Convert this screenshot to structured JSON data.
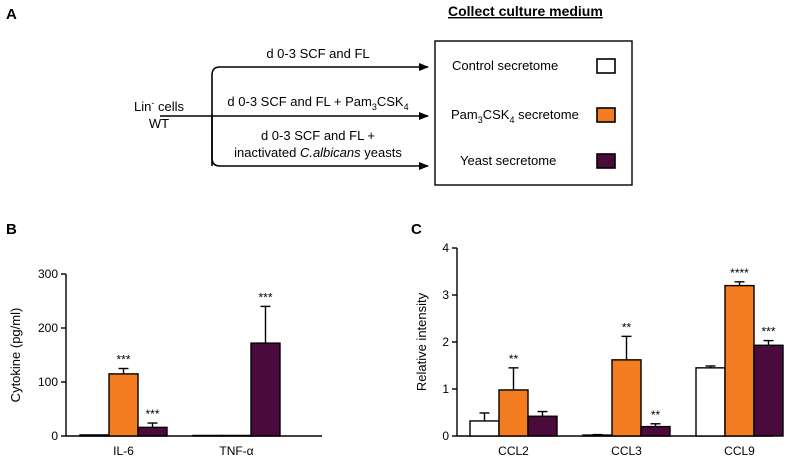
{
  "colors": {
    "control": "#ffffff",
    "pam": "#f47c20",
    "yeast": "#4a0a3c",
    "stroke": "#000000"
  },
  "panel_a": {
    "label": "A",
    "header": "Collect culture medium",
    "cells_line1": "Lin",
    "cells_sup": "-",
    "cells_line1b": " cells",
    "cells_line2": "WT",
    "arrow1": "d 0-3 SCF and FL",
    "arrow2_pre": "d 0-3 SCF and FL + Pam",
    "arrow2_sub1": "3",
    "arrow2_mid": "CSK",
    "arrow2_sub2": "4",
    "arrow3_line1": "d 0-3 SCF and FL +",
    "arrow3_line2_pre": "inactivated ",
    "arrow3_line2_ital": "C.albicans",
    "arrow3_line2_post": " yeasts",
    "legend_control": "Control secretome",
    "legend_pam_pre": "Pam",
    "legend_pam_sub1": "3",
    "legend_pam_mid": "CSK",
    "legend_pam_sub2": "4",
    "legend_pam_post": " secretome",
    "legend_yeast": "Yeast secretome"
  },
  "chart_data": [
    {
      "panel": "B",
      "type": "bar",
      "ylabel": "Cytokine (pg/ml)",
      "ylim": [
        0,
        300
      ],
      "yticks": [
        "0",
        "100",
        "200",
        "300"
      ],
      "categories": [
        "IL-6",
        "TNF-α"
      ],
      "series": [
        {
          "name": "Control secretome",
          "values": [
            2,
            1
          ],
          "errors": [
            0,
            0
          ],
          "sig": [
            "",
            ""
          ]
        },
        {
          "name": "Pam3CSK4 secretome",
          "values": [
            115,
            1
          ],
          "errors": [
            10,
            0
          ],
          "sig": [
            "***",
            ""
          ]
        },
        {
          "name": "Yeast secretome",
          "values": [
            16,
            172
          ],
          "errors": [
            8,
            68
          ],
          "sig": [
            "***",
            "***"
          ]
        }
      ]
    },
    {
      "panel": "C",
      "type": "bar",
      "ylabel": "Relative intensity",
      "ylim": [
        0,
        4
      ],
      "yticks": [
        "0",
        "1",
        "2",
        "3",
        "4"
      ],
      "categories": [
        "CCL2",
        "CCL3",
        "CCL9"
      ],
      "series": [
        {
          "name": "Control secretome",
          "values": [
            0.32,
            0.02,
            1.45
          ],
          "errors": [
            0.17,
            0.01,
            0.04
          ],
          "sig": [
            "",
            "",
            ""
          ]
        },
        {
          "name": "Pam3CSK4 secretome",
          "values": [
            0.98,
            1.62,
            3.2
          ],
          "errors": [
            0.47,
            0.5,
            0.08
          ],
          "sig": [
            "**",
            "**",
            "****"
          ]
        },
        {
          "name": "Yeast secretome",
          "values": [
            0.42,
            0.2,
            1.93
          ],
          "errors": [
            0.1,
            0.06,
            0.1
          ],
          "sig": [
            "",
            "**",
            "***"
          ]
        }
      ]
    }
  ]
}
